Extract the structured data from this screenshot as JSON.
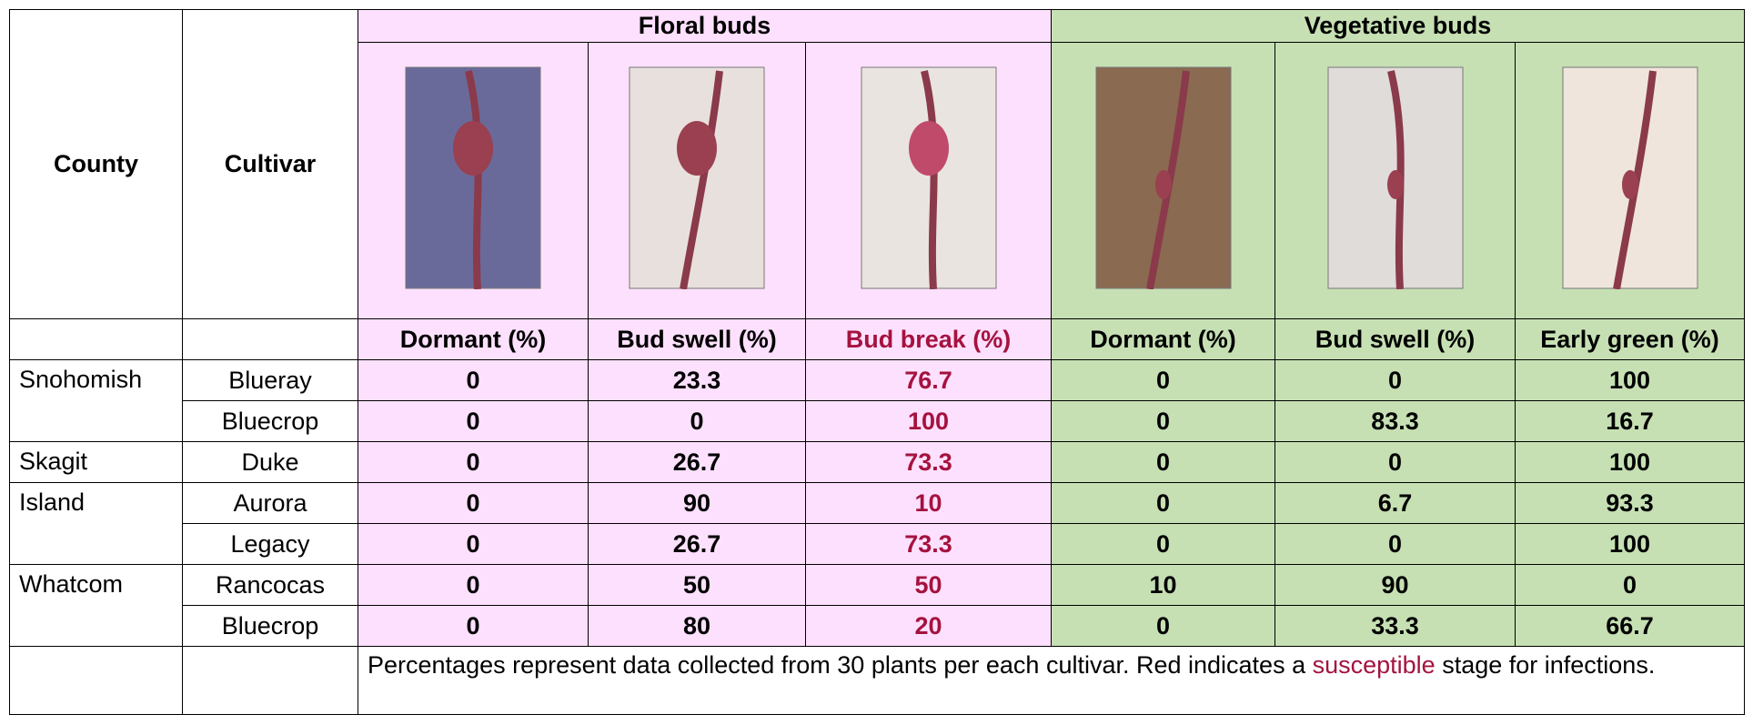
{
  "table": {
    "header": {
      "county": "County",
      "cultivar": "Cultivar",
      "floral": "Floral buds",
      "vegetative": "Vegetative buds"
    },
    "stages": [
      "Dormant (%)",
      "Bud swell (%)",
      "Bud break (%)",
      "Dormant (%)",
      "Bud swell (%)",
      "Early green (%)"
    ],
    "counties": [
      {
        "name": "Snohomish",
        "cultivars": [
          {
            "name": "Blueray",
            "values": [
              0,
              23.3,
              76.7,
              0,
              0,
              100
            ]
          },
          {
            "name": "Bluecrop",
            "values": [
              0,
              0,
              100,
              0,
              83.3,
              16.7
            ]
          }
        ]
      },
      {
        "name": "Skagit",
        "cultivars": [
          {
            "name": "Duke",
            "values": [
              0,
              26.7,
              73.3,
              0,
              0,
              100
            ]
          }
        ]
      },
      {
        "name": "Island",
        "cultivars": [
          {
            "name": "Aurora",
            "values": [
              0,
              90,
              10,
              0,
              6.7,
              93.3
            ]
          },
          {
            "name": "Legacy",
            "values": [
              0,
              26.7,
              73.3,
              0,
              0,
              100
            ]
          }
        ]
      },
      {
        "name": "Whatcom",
        "cultivars": [
          {
            "name": "Rancocas",
            "values": [
              0,
              50,
              50,
              10,
              90,
              0
            ]
          },
          {
            "name": "Bluecrop",
            "values": [
              0,
              80,
              20,
              0,
              33.3,
              66.7
            ]
          }
        ]
      }
    ],
    "note": {
      "before": "Percentages represent data collected from 30 plants per each cultivar. Red indicates a ",
      "highlight": "susceptible",
      "after": " stage for infections."
    }
  }
}
